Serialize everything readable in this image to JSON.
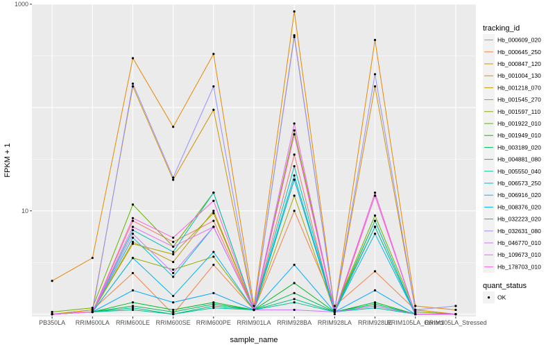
{
  "chart_data": {
    "type": "line",
    "xlabel": "sample_name",
    "ylabel": "FPKM + 1",
    "y_scale": "log10",
    "ylim": [
      0.95,
      1000
    ],
    "y_ticks": [
      10,
      1000
    ],
    "y_tick_labels": [
      "10",
      "1000"
    ],
    "grid": true,
    "legend_position": "right",
    "categories": [
      "PB350LA",
      "RRIM600LA",
      "RRIM600LE",
      "RRIM600SE",
      "RRIM600PE",
      "RRIM901LA",
      "RRIM928BA",
      "RRIM928LA",
      "RRIM928LE",
      "RRIM105LA_Control",
      "RRIM105LA_Stressed"
    ],
    "legend_title": "tracking_id",
    "series": [
      {
        "name": "Hb_000609_020",
        "color": "#F8766D",
        "values": [
          1,
          1.05,
          8,
          5,
          8,
          1.1,
          35,
          1,
          14,
          1,
          1
        ]
      },
      {
        "name": "Hb_000645_250",
        "color": "#EF7F49",
        "values": [
          1,
          1.1,
          2.5,
          1,
          3,
          1.1,
          10,
          1.2,
          2.6,
          1.1,
          1
        ]
      },
      {
        "name": "Hb_000847_120",
        "color": "#E38900",
        "values": [
          2.1,
          3.5,
          300,
          65,
          330,
          1.2,
          850,
          1.1,
          450,
          1.2,
          1.1
        ]
      },
      {
        "name": "Hb_001004_130",
        "color": "#D39200",
        "values": [
          1,
          1.1,
          160,
          20,
          95,
          1.1,
          500,
          1.1,
          160,
          1.1,
          1
        ]
      },
      {
        "name": "Hb_001218_070",
        "color": "#C09B00",
        "values": [
          1,
          1.05,
          5,
          3.2,
          10,
          1.1,
          20,
          1.1,
          7,
          1,
          1
        ]
      },
      {
        "name": "Hb_001545_270",
        "color": "#A9A400",
        "values": [
          1,
          1.05,
          4.8,
          3.8,
          9.5,
          1.1,
          14,
          1.05,
          7,
          1,
          1
        ]
      },
      {
        "name": "Hb_001597_110",
        "color": "#8EAB00",
        "values": [
          1,
          1.05,
          3.5,
          2.7,
          3.6,
          1.1,
          60,
          1.1,
          8,
          1,
          1
        ]
      },
      {
        "name": "Hb_001922_010",
        "color": "#64B200",
        "values": [
          1.05,
          1.15,
          11.5,
          4.5,
          15,
          1.1,
          55,
          1.1,
          9,
          1.05,
          1
        ]
      },
      {
        "name": "Hb_001949_010",
        "color": "#00B81F",
        "values": [
          1,
          1.05,
          1.3,
          1.1,
          1.3,
          1.1,
          2,
          1.05,
          1.3,
          1,
          1
        ]
      },
      {
        "name": "Hb_003189_020",
        "color": "#00BC59",
        "values": [
          1,
          1.05,
          1.2,
          1.05,
          1.25,
          1.1,
          1.6,
          1.05,
          1.25,
          1,
          1
        ]
      },
      {
        "name": "Hb_004881_080",
        "color": "#00BF7D",
        "values": [
          1,
          1.05,
          1.15,
          1,
          1.2,
          1.1,
          1.4,
          1.05,
          1.2,
          1,
          1
        ]
      },
      {
        "name": "Hb_005550_040",
        "color": "#00C19C",
        "values": [
          1,
          1.05,
          1.1,
          1,
          1.15,
          1.1,
          1.3,
          1.05,
          1.15,
          1,
          1
        ]
      },
      {
        "name": "Hb_006573_250",
        "color": "#00C0B7",
        "values": [
          1,
          1.05,
          6.5,
          4,
          15,
          1.1,
          27,
          1.05,
          8,
          1,
          1
        ]
      },
      {
        "name": "Hb_006916_020",
        "color": "#00BDD0",
        "values": [
          1,
          1.05,
          5.5,
          2.3,
          7,
          1.1,
          22,
          1.05,
          7,
          1,
          1
        ]
      },
      {
        "name": "Hb_008376_020",
        "color": "#00B5E7",
        "values": [
          1,
          1.05,
          3.5,
          1.5,
          4,
          1.1,
          20,
          1.05,
          6,
          1,
          1
        ]
      },
      {
        "name": "Hb_032223_020",
        "color": "#00A9FF",
        "values": [
          1,
          1.05,
          1.7,
          1.3,
          1.6,
          1.1,
          3,
          1.05,
          1.7,
          1,
          1
        ]
      },
      {
        "name": "Hb_032631_080",
        "color": "#9590FF",
        "values": [
          1,
          1.05,
          170,
          21,
          160,
          1.1,
          480,
          1.1,
          210,
          1.1,
          1.2
        ]
      },
      {
        "name": "Hb_046770_010",
        "color": "#C77CFF",
        "values": [
          1,
          1.05,
          6,
          2.5,
          7,
          1.1,
          1.1,
          1.05,
          1.2,
          1,
          1
        ]
      },
      {
        "name": "Hb_109673_010",
        "color": "#E76BF3",
        "values": [
          1,
          1.05,
          7,
          4.5,
          7,
          1.1,
          70,
          1.05,
          14,
          1,
          1
        ]
      },
      {
        "name": "Hb_178703_010",
        "color": "#FA62DB",
        "values": [
          1,
          1.05,
          8.5,
          5.5,
          12.5,
          1.1,
          55,
          1.05,
          15,
          1,
          1
        ]
      }
    ],
    "shape_legend_title": "quant_status",
    "shape_legend_items": [
      "OK"
    ]
  }
}
